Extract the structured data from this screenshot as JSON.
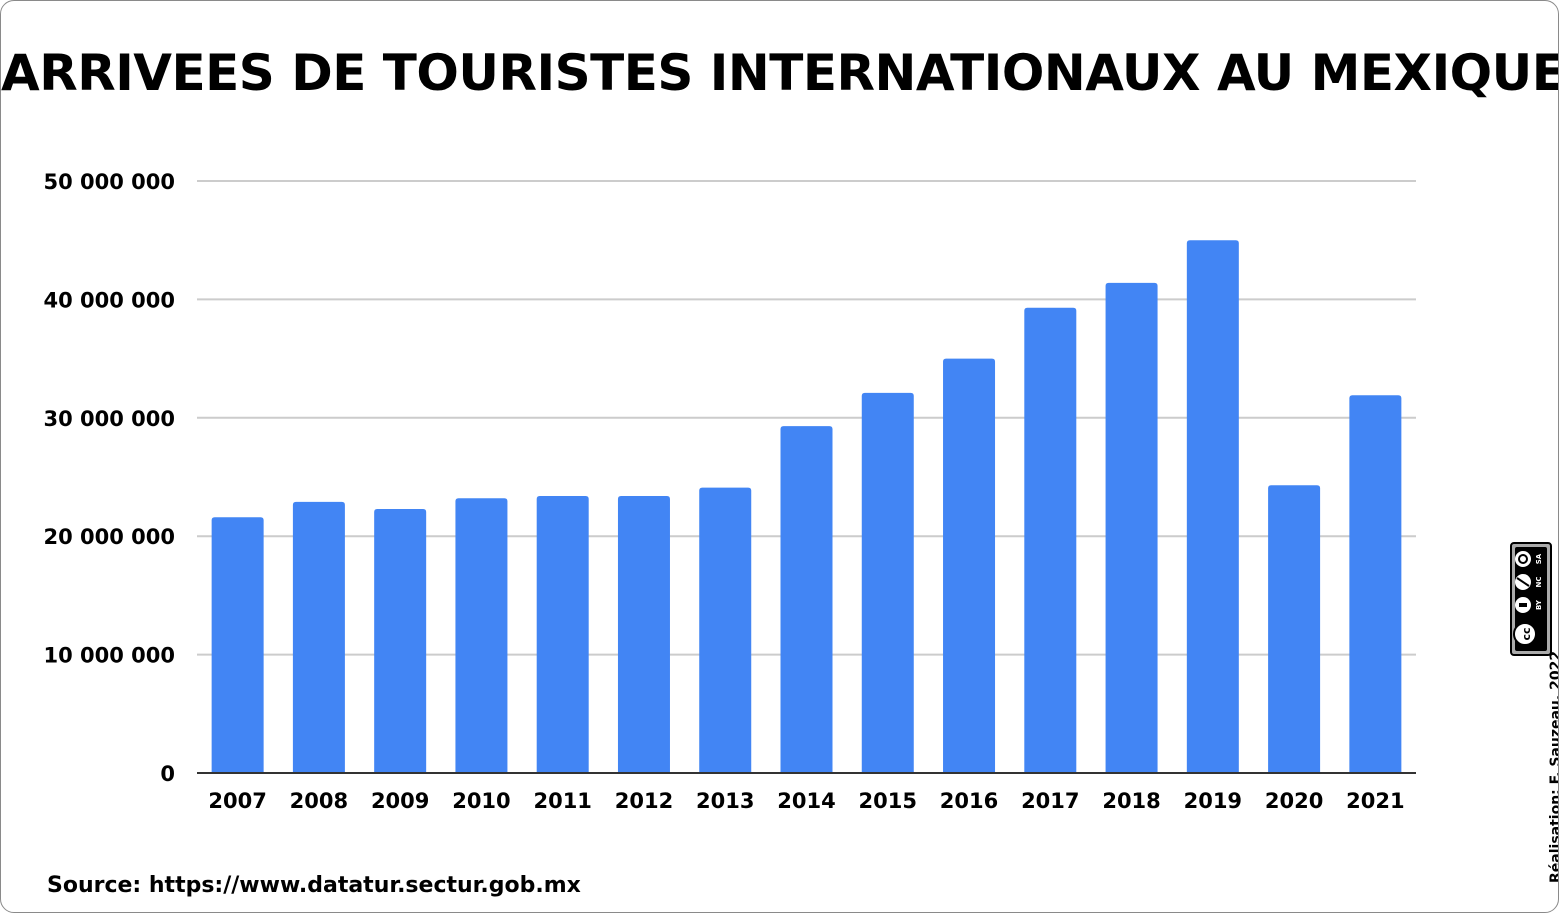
{
  "title": "ARRIVEES DE TOURISTES INTERNATIONAUX AU MEXIQUE",
  "source": "Source: https://www.datatur.sectur.gob.mx",
  "credit": "Réalisation: F. Sauzeau, 2022",
  "license": {
    "icon": "creative-commons-by-nc-sa-icon",
    "labels": [
      "BY",
      "NC",
      "SA"
    ]
  },
  "colors": {
    "bar": "#4285f4",
    "grid": "#cccccc",
    "axis": "#333333",
    "text": "#000000"
  },
  "chart_data": {
    "type": "bar",
    "title": "ARRIVEES DE TOURISTES INTERNATIONAUX AU MEXIQUE",
    "xlabel": "",
    "ylabel": "",
    "categories": [
      "2007",
      "2008",
      "2009",
      "2010",
      "2011",
      "2012",
      "2013",
      "2014",
      "2015",
      "2016",
      "2017",
      "2018",
      "2019",
      "2020",
      "2021"
    ],
    "values": [
      21600000,
      22900000,
      22300000,
      23200000,
      23400000,
      23400000,
      24100000,
      29300000,
      32100000,
      35000000,
      39300000,
      41400000,
      45000000,
      24300000,
      31900000
    ],
    "ylim": [
      0,
      50000000
    ],
    "yticks": [
      0,
      10000000,
      20000000,
      30000000,
      40000000,
      50000000
    ],
    "ytick_labels": [
      "0",
      "10 000 000",
      "20 000 000",
      "30 000 000",
      "40 000 000",
      "50 000 000"
    ],
    "grid": true,
    "legend": "none"
  }
}
